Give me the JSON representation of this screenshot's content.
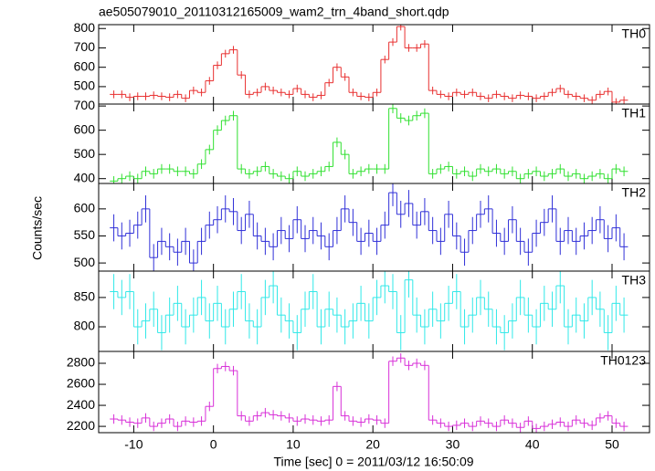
{
  "chart_data": {
    "type": "step",
    "title": "ae505079010_20110312165009_wam2_trn_4band_short.qdp",
    "xlabel": "Time [sec] 0 = 2011/03/12 16:50:09",
    "ylabel": "Counts/sec",
    "xlim": [
      -14.4,
      54.7
    ],
    "xticks": [
      -10,
      0,
      10,
      20,
      30,
      40,
      50
    ],
    "bins": [
      -13,
      -12,
      -11,
      -10,
      -9,
      -8,
      -7,
      -6,
      -5,
      -4,
      -3,
      -2,
      -1,
      0,
      1,
      2,
      3,
      4,
      5,
      6,
      7,
      8,
      9,
      10,
      11,
      12,
      13,
      14,
      15,
      16,
      17,
      18,
      19,
      20,
      21,
      22,
      23,
      24,
      25,
      26,
      27,
      28,
      29,
      30,
      31,
      32,
      33,
      34,
      35,
      36,
      37,
      38,
      39,
      40,
      41,
      42,
      43,
      44,
      45,
      46,
      47,
      48,
      49,
      50,
      51,
      52
    ],
    "panels": [
      {
        "name": "TH0",
        "color": "#e83030",
        "error": 20,
        "ylim": [
          410,
          820
        ],
        "yticks": [
          500,
          600,
          700,
          800
        ],
        "values": [
          460,
          460,
          445,
          450,
          450,
          455,
          450,
          445,
          460,
          440,
          480,
          470,
          530,
          610,
          670,
          690,
          560,
          460,
          470,
          500,
          480,
          470,
          460,
          490,
          460,
          445,
          455,
          520,
          600,
          550,
          470,
          450,
          445,
          470,
          640,
          730,
          810,
          700,
          700,
          720,
          480,
          460,
          450,
          470,
          460,
          470,
          450,
          440,
          460,
          450,
          440,
          455,
          450,
          440,
          450,
          470,
          490,
          460,
          450,
          440,
          430,
          460,
          475,
          420,
          430
        ]
      },
      {
        "name": "TH1",
        "color": "#30e030",
        "error": 20,
        "ylim": [
          380,
          708
        ],
        "yticks": [
          400,
          500,
          600,
          700
        ],
        "values": [
          390,
          400,
          410,
          400,
          430,
          420,
          440,
          440,
          430,
          430,
          420,
          460,
          520,
          600,
          640,
          660,
          440,
          420,
          430,
          450,
          420,
          410,
          400,
          430,
          410,
          420,
          430,
          450,
          550,
          500,
          420,
          430,
          440,
          440,
          440,
          690,
          650,
          640,
          660,
          670,
          420,
          440,
          450,
          420,
          430,
          410,
          440,
          430,
          440,
          420,
          430,
          400,
          420,
          430,
          410,
          420,
          440,
          410,
          420,
          400,
          410,
          420,
          400,
          440,
          430
        ]
      },
      {
        "name": "TH2",
        "color": "#3030d8",
        "error": 25,
        "ylim": [
          485,
          647
        ],
        "yticks": [
          500,
          550,
          600
        ],
        "values": [
          565,
          550,
          555,
          570,
          600,
          510,
          540,
          530,
          520,
          540,
          500,
          540,
          570,
          580,
          600,
          595,
          560,
          590,
          550,
          540,
          530,
          560,
          545,
          580,
          545,
          560,
          550,
          530,
          560,
          600,
          575,
          540,
          555,
          540,
          570,
          630,
          590,
          610,
          570,
          595,
          560,
          540,
          590,
          550,
          520,
          560,
          590,
          600,
          555,
          540,
          580,
          540,
          520,
          555,
          575,
          600,
          540,
          560,
          540,
          550,
          560,
          580,
          545,
          565,
          530
        ]
      },
      {
        "name": "TH3",
        "color": "#30e8e8",
        "error": 30,
        "ylim": [
          758,
          895
        ],
        "yticks": [
          800,
          850
        ],
        "values": [
          860,
          850,
          860,
          800,
          810,
          830,
          790,
          820,
          840,
          800,
          820,
          850,
          810,
          840,
          800,
          830,
          860,
          810,
          800,
          850,
          870,
          820,
          810,
          790,
          830,
          860,
          800,
          830,
          820,
          800,
          810,
          840,
          810,
          850,
          870,
          860,
          790,
          880,
          820,
          800,
          830,
          810,
          840,
          860,
          800,
          820,
          850,
          830,
          800,
          790,
          810,
          850,
          820,
          800,
          840,
          830,
          870,
          800,
          820,
          810,
          850,
          830,
          790,
          840,
          820
        ]
      },
      {
        "name": "TH0123",
        "color": "#d830d8",
        "error": 45,
        "ylim": [
          2140,
          2913
        ],
        "yticks": [
          2200,
          2400,
          2600,
          2800
        ],
        "values": [
          2270,
          2260,
          2240,
          2230,
          2280,
          2200,
          2230,
          2270,
          2200,
          2250,
          2240,
          2250,
          2390,
          2750,
          2770,
          2730,
          2300,
          2250,
          2300,
          2330,
          2310,
          2300,
          2280,
          2250,
          2270,
          2260,
          2250,
          2260,
          2580,
          2300,
          2250,
          2240,
          2270,
          2260,
          2230,
          2820,
          2850,
          2780,
          2800,
          2780,
          2260,
          2230,
          2200,
          2210,
          2230,
          2200,
          2250,
          2230,
          2200,
          2260,
          2230,
          2190,
          2250,
          2180,
          2200,
          2220,
          2240,
          2200,
          2260,
          2230,
          2210,
          2280,
          2300,
          2230,
          2200
        ]
      }
    ]
  }
}
